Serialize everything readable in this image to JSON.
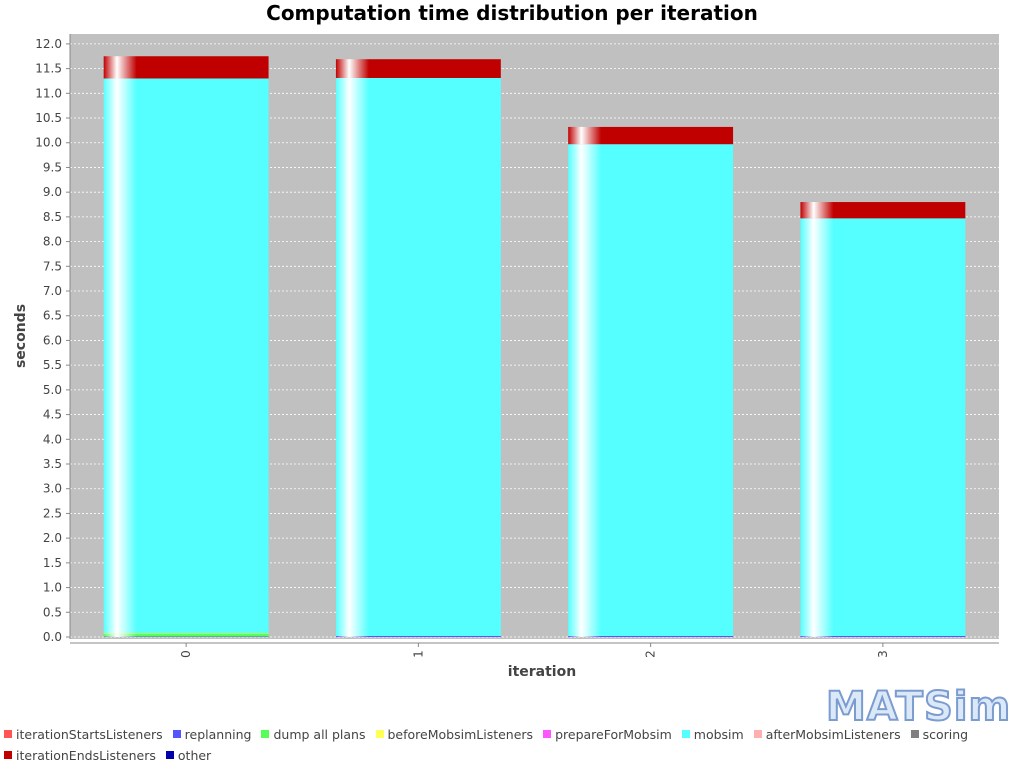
{
  "chart_data": {
    "type": "bar",
    "stacked": true,
    "title": "Computation time distribution per iteration",
    "xlabel": "iteration",
    "ylabel": "seconds",
    "ylim": [
      0,
      12.2
    ],
    "ytick_step": 0.5,
    "categories": [
      "0",
      "1",
      "2",
      "3"
    ],
    "series": [
      {
        "name": "iterationStartsListeners",
        "color": "#ff5555",
        "values": [
          0.0,
          0.0,
          0.0,
          0.0
        ]
      },
      {
        "name": "replanning",
        "color": "#5555ff",
        "values": [
          0.01,
          0.02,
          0.02,
          0.02
        ]
      },
      {
        "name": "dump all plans",
        "color": "#55ff55",
        "values": [
          0.06,
          0.0,
          0.0,
          0.0
        ]
      },
      {
        "name": "beforeMobsimListeners",
        "color": "#ffff55",
        "values": [
          0.01,
          0.0,
          0.0,
          0.0
        ]
      },
      {
        "name": "prepareForMobsim",
        "color": "#ff55ff",
        "values": [
          0.0,
          0.0,
          0.0,
          0.0
        ]
      },
      {
        "name": "mobsim",
        "color": "#55ffff",
        "values": [
          11.22,
          11.29,
          9.95,
          8.45
        ]
      },
      {
        "name": "afterMobsimListeners",
        "color": "#ffafaf",
        "values": [
          0.0,
          0.0,
          0.0,
          0.0
        ]
      },
      {
        "name": "scoring",
        "color": "#808080",
        "values": [
          0.0,
          0.0,
          0.0,
          0.0
        ]
      },
      {
        "name": "iterationEndsListeners",
        "color": "#c00000",
        "values": [
          0.45,
          0.38,
          0.35,
          0.33
        ]
      },
      {
        "name": "other",
        "color": "#0000aa",
        "values": [
          0.0,
          0.0,
          0.0,
          0.0
        ]
      }
    ]
  },
  "logo_text": "MATSim"
}
